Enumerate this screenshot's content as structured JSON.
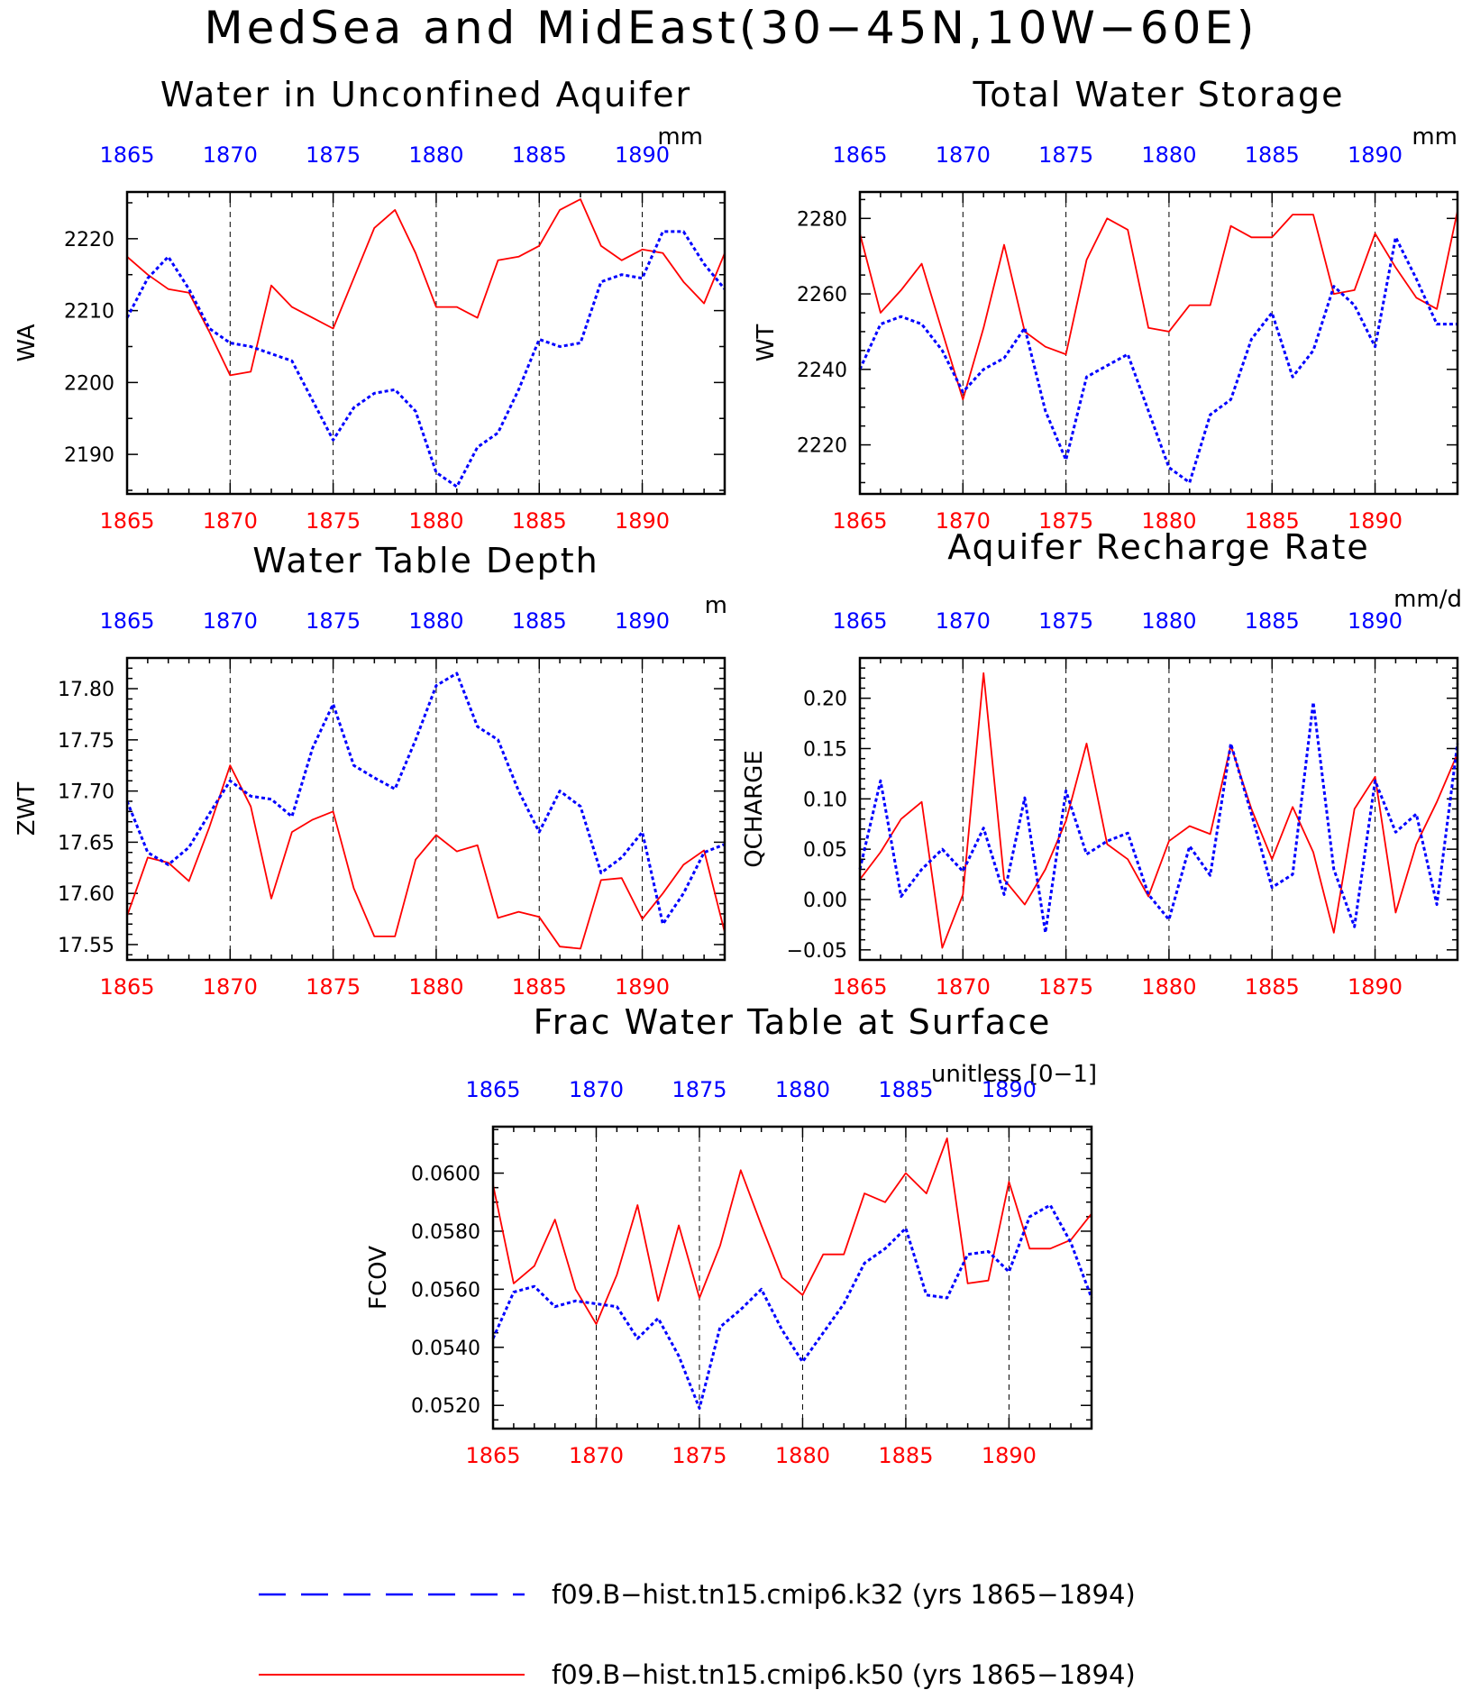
{
  "figure": {
    "title": "MedSea and MidEast(30−45N,10W−60E)"
  },
  "colors": {
    "k32": "#0000ff",
    "k50": "#ff0000",
    "axis": "#000000"
  },
  "legend": {
    "placement": "bottom-center",
    "items": [
      {
        "label": "f09.B−hist.tn15.cmip6.k32 (yrs 1865−1894)",
        "style": "dashed",
        "color": "#0000ff"
      },
      {
        "label": "f09.B−hist.tn15.cmip6.k50 (yrs 1865−1894)",
        "style": "solid",
        "color": "#ff0000"
      }
    ]
  },
  "chart_data": [
    {
      "type": "line",
      "title": "Water in Unconfined Aquifer",
      "ylabel": "WA",
      "units": "mm",
      "xlim": [
        1865,
        1894
      ],
      "ylim": [
        2184.5,
        2226.5
      ],
      "xticks": [
        1865,
        1870,
        1875,
        1880,
        1885,
        1890
      ],
      "yticks": [
        2190,
        2200,
        2210,
        2220
      ],
      "yminor": 2,
      "ytick_labels": [
        "2190",
        "2200",
        "2210",
        "2220"
      ],
      "grid": "dashed vertical at major x ticks",
      "x": [
        1865,
        1866,
        1867,
        1868,
        1869,
        1870,
        1871,
        1872,
        1873,
        1874,
        1875,
        1876,
        1877,
        1878,
        1879,
        1880,
        1881,
        1882,
        1883,
        1884,
        1885,
        1886,
        1887,
        1888,
        1889,
        1890,
        1891,
        1892,
        1893,
        1894
      ],
      "series": [
        {
          "name": "f09.B−hist.tn15.cmip6.k32",
          "color": "#0000ff",
          "style": "dashed",
          "values": [
            2209.0,
            2214.5,
            2217.5,
            2213.0,
            2207.5,
            2205.5,
            2205.0,
            2204.0,
            2203.0,
            2197.5,
            2192.0,
            2196.5,
            2198.5,
            2199.0,
            2196.0,
            2187.5,
            2185.5,
            2191.0,
            2193.0,
            2199.0,
            2206.0,
            2205.0,
            2205.5,
            2214.0,
            2215.0,
            2214.5,
            2221.0,
            2221.0,
            2216.5,
            2213.0
          ]
        },
        {
          "name": "f09.B−hist.tn15.cmip6.k50",
          "color": "#ff0000",
          "style": "solid",
          "values": [
            2217.5,
            2215.0,
            2213.0,
            2212.5,
            2207.0,
            2201.0,
            2201.5,
            2213.5,
            2210.5,
            2209.0,
            2207.5,
            2214.5,
            2221.5,
            2224.0,
            2218.0,
            2210.5,
            2210.5,
            2209.0,
            2217.0,
            2217.5,
            2219.0,
            2224.0,
            2225.5,
            2219.0,
            2217.0,
            2218.5,
            2218.0,
            2214.0,
            2211.0,
            2218.0
          ]
        }
      ]
    },
    {
      "type": "line",
      "title": "Total Water Storage",
      "ylabel": "WT",
      "units": "mm",
      "xlim": [
        1865,
        1894
      ],
      "ylim": [
        2207,
        2287
      ],
      "xticks": [
        1865,
        1870,
        1875,
        1880,
        1885,
        1890
      ],
      "yticks": [
        2220,
        2240,
        2260,
        2280
      ],
      "yminor": 4,
      "ytick_labels": [
        "2220",
        "2240",
        "2260",
        "2280"
      ],
      "grid": "dashed vertical at major x ticks",
      "x": [
        1865,
        1866,
        1867,
        1868,
        1869,
        1870,
        1871,
        1872,
        1873,
        1874,
        1875,
        1876,
        1877,
        1878,
        1879,
        1880,
        1881,
        1882,
        1883,
        1884,
        1885,
        1886,
        1887,
        1888,
        1889,
        1890,
        1891,
        1892,
        1893,
        1894
      ],
      "series": [
        {
          "name": "f09.B−hist.tn15.cmip6.k32",
          "color": "#0000ff",
          "style": "dashed",
          "values": [
            2240,
            2252,
            2254,
            2252,
            2245,
            2234,
            2240,
            2243,
            2251,
            2229,
            2216,
            2238,
            2241,
            2244,
            2229,
            2214,
            2210,
            2228,
            2232,
            2248,
            2255,
            2238,
            2245,
            2262,
            2257,
            2246,
            2275,
            2264,
            2252,
            2252
          ]
        },
        {
          "name": "f09.B−hist.tn15.cmip6.k50",
          "color": "#ff0000",
          "style": "solid",
          "values": [
            2276,
            2255,
            2261,
            2268,
            2250,
            2232,
            2251,
            2273,
            2250,
            2246,
            2244,
            2269,
            2280,
            2277,
            2251,
            2250,
            2257,
            2257,
            2278,
            2275,
            2275,
            2281,
            2281,
            2260,
            2261,
            2276,
            2267,
            2259,
            2256,
            2282
          ]
        }
      ]
    },
    {
      "type": "line",
      "title": "Water Table Depth",
      "ylabel": "ZWT",
      "units": "m",
      "xlim": [
        1865,
        1894
      ],
      "ylim": [
        17.535,
        17.83
      ],
      "xticks": [
        1865,
        1870,
        1875,
        1880,
        1885,
        1890
      ],
      "yticks": [
        17.55,
        17.6,
        17.65,
        17.7,
        17.75,
        17.8
      ],
      "yminor": 5,
      "ytick_labels": [
        "17.55",
        "17.60",
        "17.65",
        "17.70",
        "17.75",
        "17.80"
      ],
      "grid": "dashed vertical at major x ticks",
      "x": [
        1865,
        1866,
        1867,
        1868,
        1869,
        1870,
        1871,
        1872,
        1873,
        1874,
        1875,
        1876,
        1877,
        1878,
        1879,
        1880,
        1881,
        1882,
        1883,
        1884,
        1885,
        1886,
        1887,
        1888,
        1889,
        1890,
        1891,
        1892,
        1893,
        1894
      ],
      "series": [
        {
          "name": "f09.B−hist.tn15.cmip6.k32",
          "color": "#0000ff",
          "style": "dashed",
          "values": [
            17.69,
            17.64,
            17.628,
            17.645,
            17.678,
            17.71,
            17.695,
            17.692,
            17.675,
            17.742,
            17.785,
            17.725,
            17.713,
            17.702,
            17.75,
            17.803,
            17.815,
            17.763,
            17.75,
            17.7,
            17.66,
            17.7,
            17.685,
            17.62,
            17.635,
            17.66,
            17.57,
            17.6,
            17.64,
            17.648
          ]
        },
        {
          "name": "f09.B−hist.tn15.cmip6.k50",
          "color": "#ff0000",
          "style": "solid",
          "values": [
            17.578,
            17.635,
            17.63,
            17.612,
            17.665,
            17.725,
            17.685,
            17.595,
            17.66,
            17.672,
            17.68,
            17.605,
            17.558,
            17.558,
            17.633,
            17.657,
            17.641,
            17.647,
            17.576,
            17.582,
            17.577,
            17.548,
            17.546,
            17.613,
            17.615,
            17.575,
            17.6,
            17.628,
            17.642,
            17.562
          ]
        }
      ]
    },
    {
      "type": "line",
      "title": "Aquifer Recharge Rate",
      "ylabel": "QCHARGE",
      "units": "mm/d",
      "xlim": [
        1865,
        1894
      ],
      "ylim": [
        -0.06,
        0.24
      ],
      "xticks": [
        1865,
        1870,
        1875,
        1880,
        1885,
        1890
      ],
      "yticks": [
        -0.05,
        0.0,
        0.05,
        0.1,
        0.15,
        0.2
      ],
      "yminor": 5,
      "ytick_labels": [
        "−0.05",
        "0.00",
        "0.05",
        "0.10",
        "0.15",
        "0.20"
      ],
      "grid": "dashed vertical at major x ticks",
      "x": [
        1865,
        1866,
        1867,
        1868,
        1869,
        1870,
        1871,
        1872,
        1873,
        1874,
        1875,
        1876,
        1877,
        1878,
        1879,
        1880,
        1881,
        1882,
        1883,
        1884,
        1885,
        1886,
        1887,
        1888,
        1889,
        1890,
        1891,
        1892,
        1893,
        1894
      ],
      "series": [
        {
          "name": "f09.B−hist.tn15.cmip6.k32",
          "color": "#0000ff",
          "style": "dashed",
          "values": [
            0.03,
            0.118,
            0.003,
            0.03,
            0.05,
            0.028,
            0.071,
            0.005,
            0.101,
            -0.033,
            0.108,
            0.045,
            0.058,
            0.066,
            0.005,
            -0.02,
            0.053,
            0.024,
            0.155,
            0.085,
            0.012,
            0.025,
            0.196,
            0.03,
            -0.027,
            0.118,
            0.067,
            0.085,
            -0.005,
            0.155
          ]
        },
        {
          "name": "f09.B−hist.tn15.cmip6.k50",
          "color": "#ff0000",
          "style": "solid",
          "values": [
            0.02,
            0.047,
            0.08,
            0.097,
            -0.048,
            0.005,
            0.225,
            0.02,
            -0.005,
            0.03,
            0.078,
            0.155,
            0.055,
            0.04,
            0.003,
            0.058,
            0.073,
            0.065,
            0.153,
            0.09,
            0.04,
            0.092,
            0.047,
            -0.033,
            0.09,
            0.122,
            -0.013,
            0.055,
            0.097,
            0.145
          ]
        }
      ]
    },
    {
      "type": "line",
      "title": "Frac Water Table at Surface",
      "ylabel": "FCOV",
      "units": "unitless [0−1]",
      "xlim": [
        1865,
        1894
      ],
      "ylim": [
        0.0512,
        0.0616
      ],
      "xticks": [
        1865,
        1870,
        1875,
        1880,
        1885,
        1890
      ],
      "yticks": [
        0.052,
        0.054,
        0.056,
        0.058,
        0.06
      ],
      "yminor": 4,
      "ytick_labels": [
        "0.0520",
        "0.0540",
        "0.0560",
        "0.0580",
        "0.0600"
      ],
      "grid": "dashed vertical at major x ticks",
      "x": [
        1865,
        1866,
        1867,
        1868,
        1869,
        1870,
        1871,
        1872,
        1873,
        1874,
        1875,
        1876,
        1877,
        1878,
        1879,
        1880,
        1881,
        1882,
        1883,
        1884,
        1885,
        1886,
        1887,
        1888,
        1889,
        1890,
        1891,
        1892,
        1893,
        1894
      ],
      "series": [
        {
          "name": "f09.B−hist.tn15.cmip6.k32",
          "color": "#0000ff",
          "style": "dashed",
          "values": [
            0.0543,
            0.0559,
            0.0561,
            0.0554,
            0.0556,
            0.0555,
            0.0554,
            0.0543,
            0.055,
            0.0537,
            0.0519,
            0.0547,
            0.0553,
            0.056,
            0.0546,
            0.0535,
            0.0545,
            0.0555,
            0.0569,
            0.0574,
            0.0581,
            0.0558,
            0.0557,
            0.0572,
            0.0573,
            0.0566,
            0.0585,
            0.0589,
            0.0576,
            0.0557
          ]
        },
        {
          "name": "f09.B−hist.tn15.cmip6.k50",
          "color": "#ff0000",
          "style": "solid",
          "values": [
            0.0596,
            0.0562,
            0.0568,
            0.0584,
            0.056,
            0.0548,
            0.0565,
            0.0589,
            0.0556,
            0.0582,
            0.0557,
            0.0575,
            0.0601,
            0.0582,
            0.0564,
            0.0558,
            0.0572,
            0.0572,
            0.0593,
            0.059,
            0.06,
            0.0593,
            0.0612,
            0.0562,
            0.0563,
            0.0597,
            0.0574,
            0.0574,
            0.0577,
            0.0586
          ]
        }
      ]
    }
  ]
}
